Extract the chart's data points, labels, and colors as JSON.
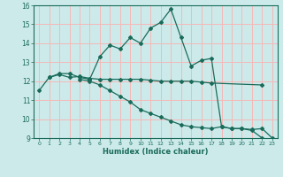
{
  "xlabel": "Humidex (Indice chaleur)",
  "xlim": [
    -0.5,
    23.5
  ],
  "ylim": [
    9,
    16
  ],
  "yticks": [
    9,
    10,
    11,
    12,
    13,
    14,
    15,
    16
  ],
  "xticks": [
    0,
    1,
    2,
    3,
    4,
    5,
    6,
    7,
    8,
    9,
    10,
    11,
    12,
    13,
    14,
    15,
    16,
    17,
    18,
    19,
    20,
    21,
    22,
    23
  ],
  "bg_color": "#cceaea",
  "grid_color": "#f5b8b8",
  "line_color": "#1a6b5a",
  "line1_x": [
    0,
    1,
    2,
    3,
    4,
    5,
    6,
    7,
    8,
    9,
    10,
    11,
    12,
    13,
    14,
    15,
    16,
    17,
    18,
    19,
    20,
    21,
    22
  ],
  "line1_y": [
    11.5,
    12.2,
    12.4,
    12.4,
    12.2,
    12.1,
    13.3,
    13.9,
    13.7,
    14.3,
    14.0,
    14.8,
    15.1,
    15.8,
    14.3,
    12.8,
    13.1,
    13.2,
    9.6,
    9.5,
    9.5,
    9.4,
    9.0
  ],
  "line2_x": [
    1,
    2,
    3,
    4,
    5,
    6,
    7,
    8,
    9,
    10,
    11,
    12,
    13,
    14,
    15,
    16,
    17,
    22
  ],
  "line2_y": [
    12.2,
    12.35,
    12.2,
    12.25,
    12.15,
    12.1,
    12.1,
    12.1,
    12.1,
    12.1,
    12.05,
    12.0,
    12.0,
    12.0,
    12.0,
    11.95,
    11.9,
    11.8
  ],
  "line3_x": [
    4,
    5,
    6,
    7,
    8,
    9,
    10,
    11,
    12,
    13,
    14,
    15,
    16,
    17,
    18,
    19,
    20,
    21,
    22,
    23
  ],
  "line3_y": [
    12.1,
    12.0,
    11.8,
    11.5,
    11.2,
    10.9,
    10.5,
    10.3,
    10.1,
    9.9,
    9.7,
    9.6,
    9.55,
    9.5,
    9.6,
    9.5,
    9.5,
    9.45,
    9.5,
    9.0
  ]
}
